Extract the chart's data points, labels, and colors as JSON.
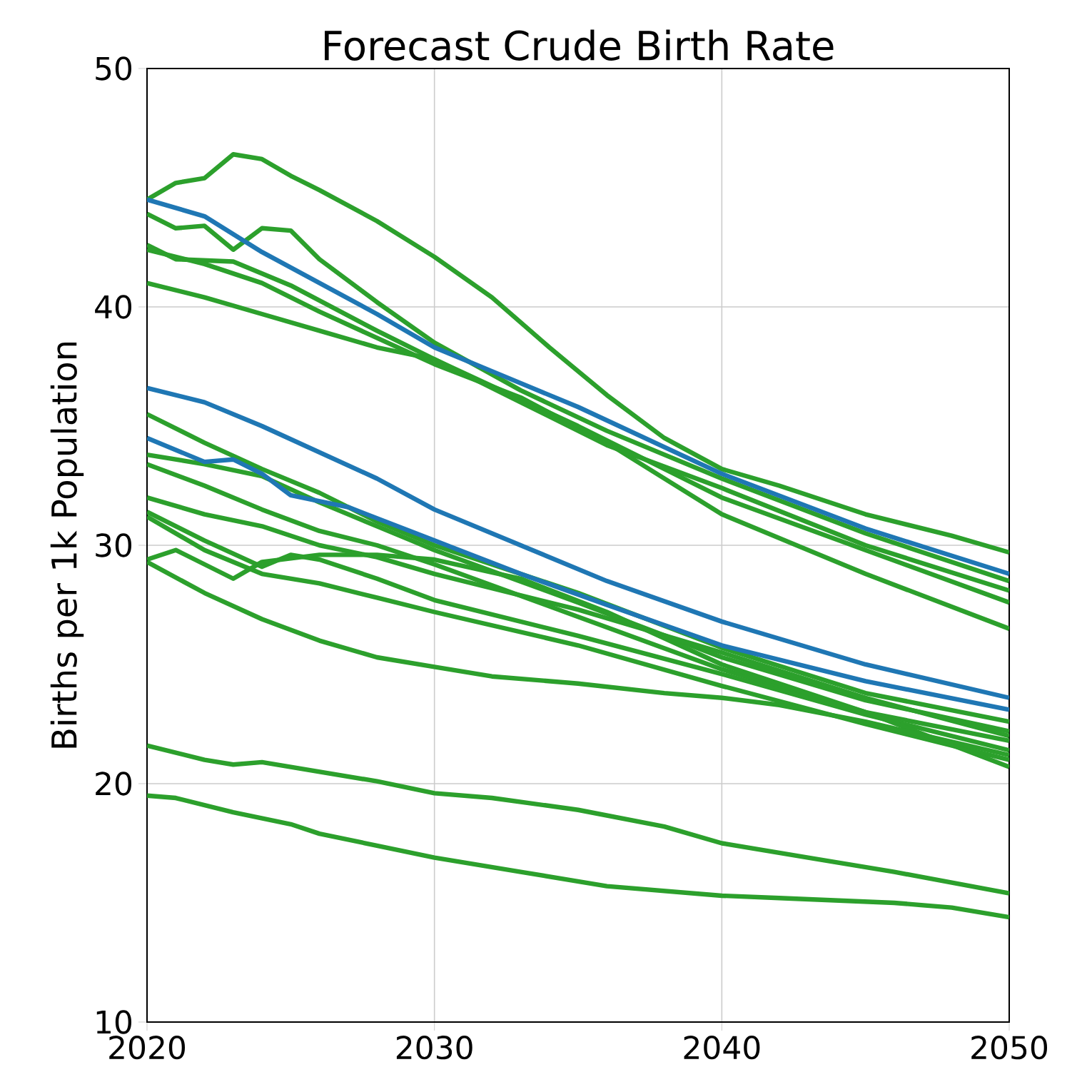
{
  "chart_data": {
    "type": "line",
    "title": "Forecast Crude Birth Rate",
    "ylabel": "Births per 1k Population",
    "xlim": [
      2020,
      2050
    ],
    "xticks": [
      2020,
      2030,
      2040,
      2050
    ],
    "ylim": [
      10,
      50
    ],
    "yticks": [
      10,
      20,
      30,
      40,
      50
    ],
    "grid": true,
    "marker": "none",
    "line_style": "solid",
    "series": [
      {
        "color": "#2ca02c",
        "x": [
          2020,
          2021,
          2022,
          2023,
          2024,
          2025,
          2026,
          2028,
          2030,
          2032,
          2034,
          2036,
          2038,
          2040,
          2042,
          2045,
          2048,
          2050
        ],
        "values": [
          44.5,
          45.2,
          45.4,
          46.4,
          46.2,
          45.5,
          44.9,
          43.6,
          42.1,
          40.4,
          38.3,
          36.3,
          34.5,
          33.2,
          32.5,
          31.3,
          30.4,
          29.7
        ]
      },
      {
        "color": "#2ca02c",
        "x": [
          2020,
          2021,
          2022,
          2023,
          2024,
          2025,
          2026,
          2028,
          2030,
          2033,
          2036,
          2040,
          2045,
          2050
        ],
        "values": [
          43.9,
          43.3,
          43.4,
          42.4,
          43.3,
          43.2,
          42.0,
          40.2,
          38.5,
          36.5,
          34.8,
          32.8,
          30.5,
          28.5
        ]
      },
      {
        "color": "#2ca02c",
        "x": [
          2020,
          2021,
          2023,
          2025,
          2028,
          2030,
          2035,
          2040,
          2045,
          2050
        ],
        "values": [
          42.6,
          42.0,
          41.9,
          40.9,
          39.0,
          37.8,
          35.0,
          32.0,
          29.8,
          27.6
        ]
      },
      {
        "color": "#2ca02c",
        "x": [
          2020,
          2022,
          2024,
          2026,
          2028,
          2030,
          2033,
          2036,
          2040,
          2045,
          2050
        ],
        "values": [
          42.4,
          41.8,
          41.0,
          39.8,
          38.7,
          37.6,
          36.2,
          34.3,
          31.3,
          28.8,
          26.5
        ]
      },
      {
        "color": "#2ca02c",
        "x": [
          2020,
          2022,
          2024,
          2026,
          2028,
          2030,
          2033,
          2036,
          2040,
          2045,
          2050
        ],
        "values": [
          41.0,
          40.4,
          39.7,
          39.0,
          38.3,
          37.8,
          36.0,
          34.2,
          32.4,
          30.0,
          28.1
        ]
      },
      {
        "color": "#2ca02c",
        "x": [
          2020,
          2022,
          2024,
          2026,
          2028,
          2030,
          2035,
          2040,
          2045,
          2050
        ],
        "values": [
          35.5,
          34.3,
          33.2,
          32.2,
          31.0,
          30.0,
          28.0,
          25.7,
          23.8,
          22.6
        ]
      },
      {
        "color": "#2ca02c",
        "x": [
          2020,
          2022,
          2024,
          2026,
          2028,
          2030,
          2035,
          2040,
          2045,
          2050
        ],
        "values": [
          33.8,
          33.4,
          32.9,
          31.8,
          30.8,
          29.8,
          27.6,
          25.3,
          23.5,
          22.2
        ]
      },
      {
        "color": "#2ca02c",
        "x": [
          2020,
          2022,
          2024,
          2026,
          2028,
          2030,
          2035,
          2040,
          2045,
          2050
        ],
        "values": [
          33.4,
          32.5,
          31.5,
          30.6,
          30.0,
          29.2,
          27.0,
          24.8,
          23.0,
          21.8
        ]
      },
      {
        "color": "#2ca02c",
        "x": [
          2020,
          2022,
          2024,
          2026,
          2028,
          2030,
          2035,
          2040,
          2045,
          2050
        ],
        "values": [
          32.0,
          31.3,
          30.8,
          30.0,
          29.5,
          28.8,
          27.3,
          25.5,
          23.6,
          22.0
        ]
      },
      {
        "color": "#2ca02c",
        "x": [
          2020,
          2022,
          2024,
          2025,
          2026,
          2028,
          2030,
          2035,
          2040,
          2045,
          2050
        ],
        "values": [
          31.4,
          30.2,
          29.1,
          29.6,
          29.4,
          28.6,
          27.7,
          26.2,
          24.6,
          22.9,
          21.4
        ]
      },
      {
        "color": "#2ca02c",
        "x": [
          2020,
          2022,
          2024,
          2026,
          2028,
          2030,
          2035,
          2040,
          2045,
          2050
        ],
        "values": [
          31.2,
          29.8,
          28.8,
          28.4,
          27.8,
          27.2,
          25.8,
          24.1,
          22.5,
          21.0
        ]
      },
      {
        "color": "#2ca02c",
        "x": [
          2020,
          2021,
          2023,
          2024,
          2026,
          2028,
          2030,
          2033,
          2036,
          2040,
          2045,
          2050
        ],
        "values": [
          29.4,
          29.8,
          28.6,
          29.3,
          29.6,
          29.6,
          29.4,
          28.6,
          27.2,
          25.0,
          23.0,
          20.7
        ]
      },
      {
        "color": "#2ca02c",
        "x": [
          2020,
          2022,
          2024,
          2026,
          2028,
          2030,
          2032,
          2035,
          2038,
          2040,
          2042,
          2045,
          2050
        ],
        "values": [
          29.3,
          28.0,
          26.9,
          26.0,
          25.3,
          24.9,
          24.5,
          24.2,
          23.8,
          23.6,
          23.3,
          22.6,
          21.2
        ]
      },
      {
        "color": "#2ca02c",
        "x": [
          2020,
          2022,
          2023,
          2024,
          2026,
          2028,
          2030,
          2032,
          2035,
          2038,
          2040,
          2043,
          2046,
          2050
        ],
        "values": [
          21.6,
          21.0,
          20.8,
          20.9,
          20.5,
          20.1,
          19.6,
          19.4,
          18.9,
          18.2,
          17.5,
          16.9,
          16.3,
          15.4
        ]
      },
      {
        "color": "#2ca02c",
        "x": [
          2020,
          2021,
          2023,
          2025,
          2026,
          2028,
          2030,
          2033,
          2036,
          2040,
          2042,
          2044,
          2046,
          2048,
          2050
        ],
        "values": [
          19.5,
          19.4,
          18.8,
          18.3,
          17.9,
          17.4,
          16.9,
          16.3,
          15.7,
          15.3,
          15.2,
          15.1,
          15.0,
          14.8,
          14.4
        ]
      },
      {
        "color": "#1f77b4",
        "x": [
          2020,
          2022,
          2024,
          2026,
          2028,
          2030,
          2032,
          2035,
          2040,
          2045,
          2050
        ],
        "values": [
          44.5,
          43.8,
          42.3,
          41.0,
          39.7,
          38.3,
          37.3,
          35.8,
          33.0,
          30.7,
          28.8
        ]
      },
      {
        "color": "#1f77b4",
        "x": [
          2020,
          2022,
          2024,
          2026,
          2028,
          2030,
          2033,
          2036,
          2040,
          2045,
          2050
        ],
        "values": [
          36.6,
          36.0,
          35.0,
          33.9,
          32.8,
          31.5,
          30.0,
          28.5,
          26.8,
          25.0,
          23.6
        ]
      },
      {
        "color": "#1f77b4",
        "x": [
          2020,
          2022,
          2023,
          2024,
          2025,
          2027,
          2030,
          2033,
          2036,
          2040,
          2045,
          2050
        ],
        "values": [
          34.5,
          33.5,
          33.6,
          33.0,
          32.1,
          31.6,
          30.2,
          28.8,
          27.5,
          25.8,
          24.3,
          23.1
        ]
      }
    ]
  }
}
